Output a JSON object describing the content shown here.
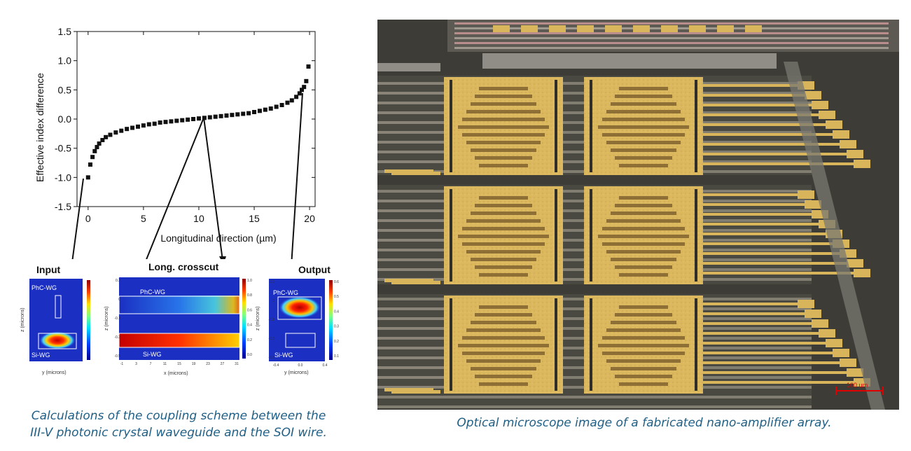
{
  "chart_data": {
    "type": "scatter",
    "xlabel": "Longitudinal direction (µm)",
    "ylabel": "Effective index difference",
    "xlim": [
      -1,
      20.5
    ],
    "ylim": [
      -1.5,
      1.5
    ],
    "x_ticks": [
      "0",
      "5",
      "10",
      "15",
      "20"
    ],
    "y_ticks": [
      "1.5",
      "1.0",
      "0.5",
      "0.0",
      "-0.5",
      "-1.0",
      "-1.5"
    ],
    "x": [
      0.0,
      0.2,
      0.4,
      0.6,
      0.8,
      1.0,
      1.3,
      1.6,
      2.0,
      2.5,
      3.0,
      3.5,
      4.0,
      4.5,
      5.0,
      5.5,
      6.0,
      6.5,
      7.0,
      7.5,
      8.0,
      8.5,
      9.0,
      9.5,
      10.0,
      10.5,
      11.0,
      11.5,
      12.0,
      12.5,
      13.0,
      13.5,
      14.0,
      14.5,
      15.0,
      15.5,
      16.0,
      16.5,
      17.0,
      17.5,
      18.0,
      18.4,
      18.8,
      19.1,
      19.3,
      19.5,
      19.7,
      19.9
    ],
    "y": [
      -1.0,
      -0.78,
      -0.65,
      -0.55,
      -0.48,
      -0.42,
      -0.36,
      -0.31,
      -0.27,
      -0.23,
      -0.2,
      -0.17,
      -0.15,
      -0.13,
      -0.11,
      -0.09,
      -0.08,
      -0.06,
      -0.05,
      -0.04,
      -0.03,
      -0.02,
      -0.01,
      0.0,
      0.01,
      0.02,
      0.03,
      0.04,
      0.05,
      0.06,
      0.07,
      0.08,
      0.09,
      0.1,
      0.12,
      0.14,
      0.16,
      0.18,
      0.21,
      0.24,
      0.28,
      0.32,
      0.38,
      0.44,
      0.5,
      0.55,
      0.65,
      0.9
    ]
  },
  "panels": {
    "input": {
      "title": "Input",
      "top_label": "PhC-WG",
      "bottom_label": "Si-WG",
      "xlabel": "y (microns)",
      "ylabel": "z (microns)"
    },
    "crosscut": {
      "title": "Long. crosscut",
      "top_label": "PhC-WG",
      "bottom_label": "Si-WG",
      "xlabel": "x (microns)",
      "ylabel": "z (microns)",
      "x_ticks": [
        "-1",
        "3",
        "7",
        "11",
        "15",
        "19",
        "23",
        "27",
        "31"
      ],
      "y_ticks": [
        "0.3",
        "0",
        "-0.1",
        "-0.3",
        "-0.5"
      ],
      "cbar_ticks": [
        "1.0",
        "0.8",
        "0.6",
        "0.4",
        "0.2",
        "0.0"
      ]
    },
    "output": {
      "title": "Output",
      "top_label": "PhC-WG",
      "bottom_label": "Si-WG",
      "xlabel": "y (microns)",
      "ylabel": "z (microns)",
      "x_ticks": [
        "-0.4",
        "0.0",
        "0.4"
      ],
      "y_ticks": [
        "0.3",
        "0",
        "-0.1",
        "-0.3",
        "-0.5"
      ],
      "cbar_ticks": [
        "0.6",
        "0.5",
        "0.4",
        "0.3",
        "0.2",
        "0.1"
      ]
    }
  },
  "captions": {
    "left_line1": "Calculations of the coupling scheme between the",
    "left_line2": "III-V photonic crystal waveguide and the SOI wire.",
    "right": "Optical microscope image of a fabricated nano-amplifier array."
  },
  "scale_bar": "100 µm",
  "colors": {
    "caption": "#1f5f85",
    "jet_low": "#1b2fc2",
    "jet_high": "#c40000",
    "chip_bg": "#3d3c36",
    "gold": "#d8b55a"
  }
}
